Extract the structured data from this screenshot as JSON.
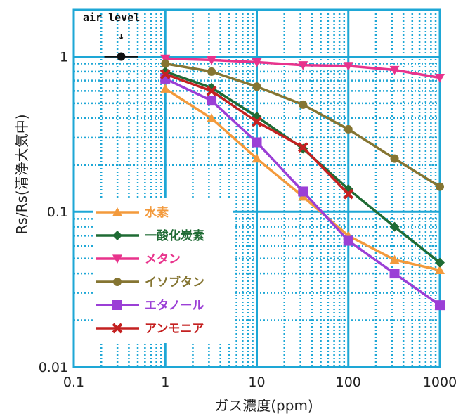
{
  "chart_data": {
    "type": "line",
    "title": "",
    "xlabel": "ガス濃度(ppm)",
    "ylabel": "Rs/Rs(清浄大気中)",
    "x_scale": "log",
    "y_scale": "log",
    "xlim": [
      0.1,
      1000
    ],
    "ylim": [
      0.01,
      2
    ],
    "x_ticks": [
      {
        "value": 0.1,
        "label": "0.1"
      },
      {
        "value": 1,
        "label": "1"
      },
      {
        "value": 10,
        "label": "10"
      },
      {
        "value": 100,
        "label": "100"
      },
      {
        "value": 1000,
        "label": "1000"
      }
    ],
    "y_ticks": [
      {
        "value": 0.01,
        "label": "0.01"
      },
      {
        "value": 0.1,
        "label": "0.1"
      },
      {
        "value": 1,
        "label": "1"
      }
    ],
    "grid": true,
    "legend_position": "bottom-left",
    "annotation": {
      "text": "air   level",
      "arrow": "↓",
      "x": 0.33,
      "y": 1
    },
    "series": [
      {
        "name": "水素",
        "color": "#f39a3c",
        "marker": "triangle-up",
        "points": [
          [
            1,
            0.62
          ],
          [
            3.2,
            0.4
          ],
          [
            10,
            0.22
          ],
          [
            32,
            0.125
          ],
          [
            100,
            0.07
          ],
          [
            320,
            0.049
          ],
          [
            1000,
            0.042
          ]
        ]
      },
      {
        "name": "一酸化炭素",
        "color": "#1f6b34",
        "marker": "diamond",
        "points": [
          [
            1,
            0.8
          ],
          [
            3.2,
            0.63
          ],
          [
            10,
            0.41
          ],
          [
            32,
            0.255
          ],
          [
            100,
            0.14
          ],
          [
            320,
            0.08
          ],
          [
            1000,
            0.047
          ]
        ]
      },
      {
        "name": "メタン",
        "color": "#e8338c",
        "marker": "triangle-down",
        "points": [
          [
            1,
            0.97
          ],
          [
            3.2,
            0.95
          ],
          [
            10,
            0.92
          ],
          [
            32,
            0.88
          ],
          [
            100,
            0.87
          ],
          [
            320,
            0.82
          ],
          [
            1000,
            0.73
          ]
        ]
      },
      {
        "name": "イソブタン",
        "color": "#857532",
        "marker": "circle",
        "points": [
          [
            1,
            0.9
          ],
          [
            3.2,
            0.8
          ],
          [
            10,
            0.64
          ],
          [
            32,
            0.49
          ],
          [
            100,
            0.34
          ],
          [
            320,
            0.22
          ],
          [
            1000,
            0.145
          ]
        ]
      },
      {
        "name": "エタノール",
        "color": "#9b3fd6",
        "marker": "square",
        "points": [
          [
            1,
            0.72
          ],
          [
            3.2,
            0.52
          ],
          [
            10,
            0.28
          ],
          [
            32,
            0.135
          ],
          [
            100,
            0.065
          ],
          [
            320,
            0.04
          ],
          [
            1000,
            0.025
          ]
        ]
      },
      {
        "name": "アンモニア",
        "color": "#c42121",
        "marker": "x",
        "points": [
          [
            1,
            0.77
          ],
          [
            3.2,
            0.6
          ],
          [
            10,
            0.38
          ],
          [
            32,
            0.26
          ],
          [
            100,
            0.13
          ]
        ]
      }
    ]
  }
}
